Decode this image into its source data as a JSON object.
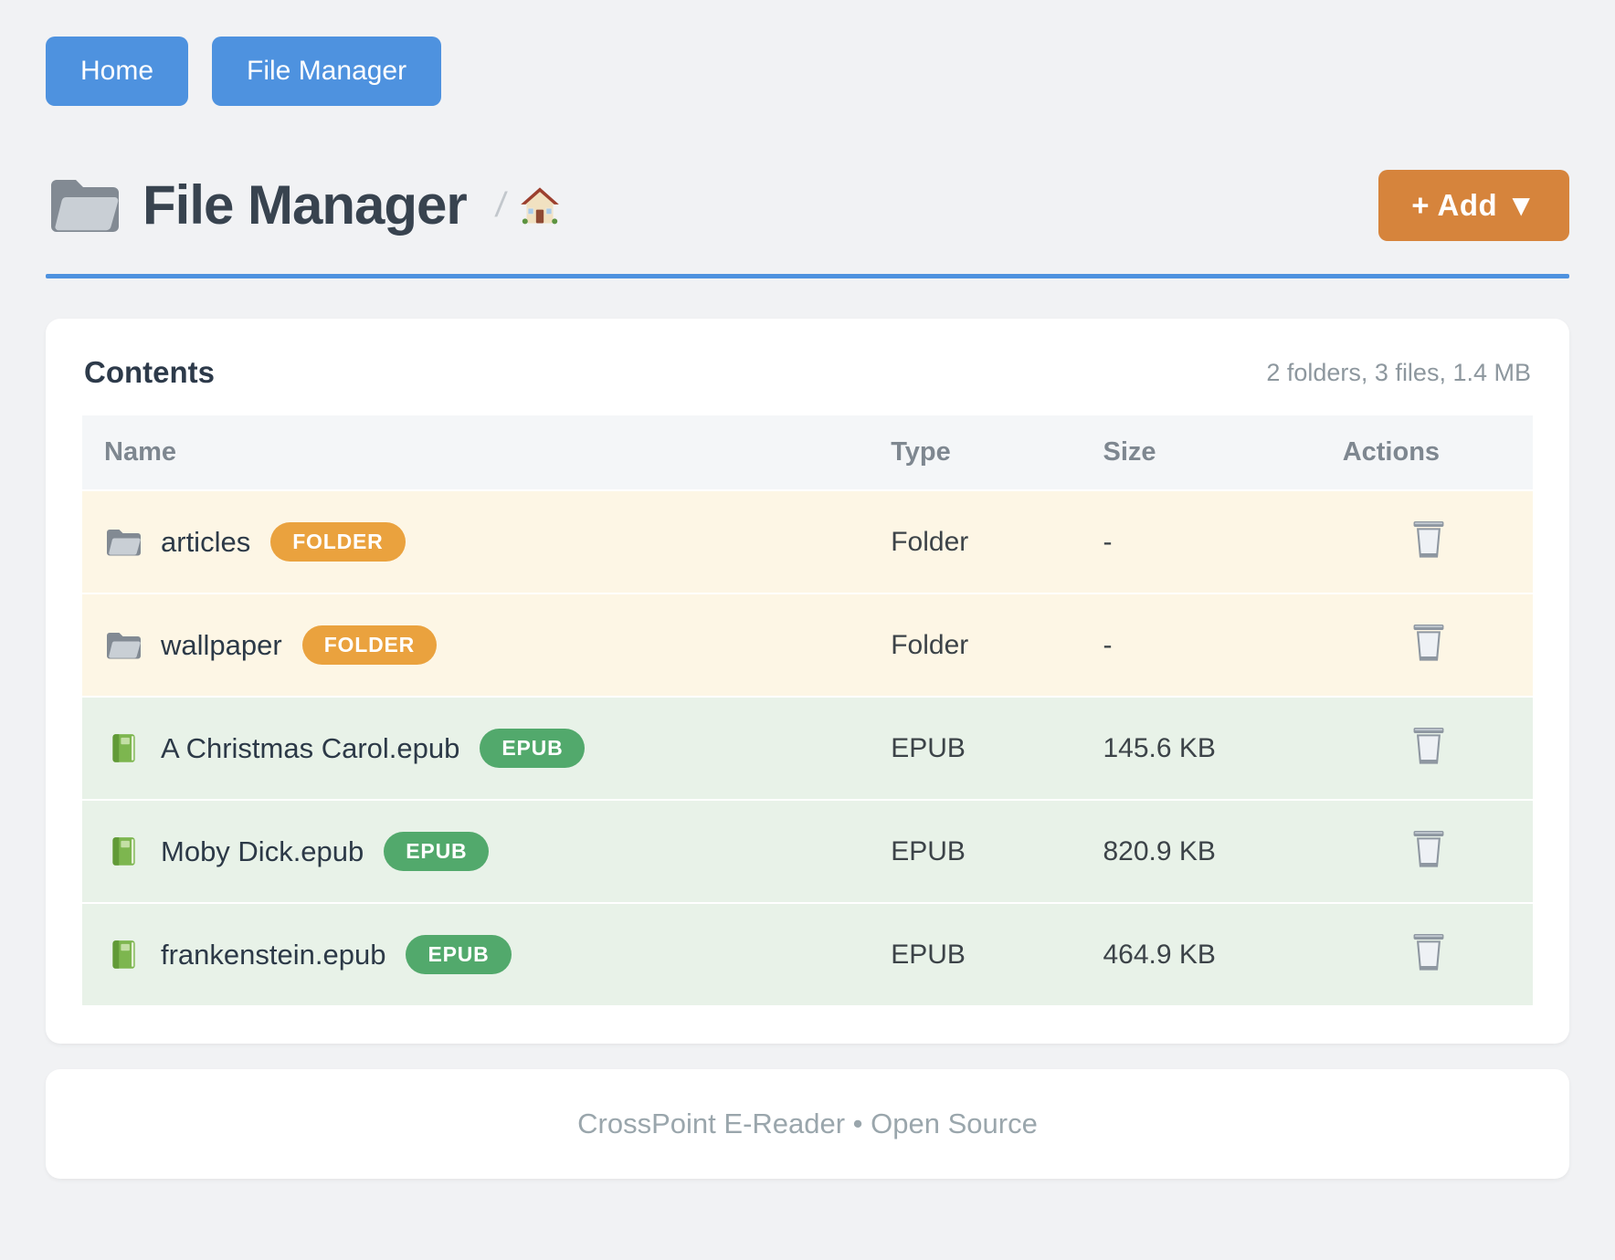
{
  "nav": {
    "home_label": "Home",
    "file_manager_label": "File Manager"
  },
  "header": {
    "title": "File Manager",
    "title_icon": "folder-icon",
    "breadcrumb_separator": "/",
    "breadcrumb_icon": "home-icon",
    "add_label": "+ Add ▼"
  },
  "contents": {
    "title": "Contents",
    "summary": "2 folders, 3 files, 1.4 MB",
    "columns": [
      "Name",
      "Type",
      "Size",
      "Actions"
    ],
    "rows": [
      {
        "name": "articles",
        "badge": "FOLDER",
        "type": "Folder",
        "size": "-",
        "kind": "folder",
        "icon": "folder-icon",
        "action_icon": "trash-icon"
      },
      {
        "name": "wallpaper",
        "badge": "FOLDER",
        "type": "Folder",
        "size": "-",
        "kind": "folder",
        "icon": "folder-icon",
        "action_icon": "trash-icon"
      },
      {
        "name": "A Christmas Carol.epub",
        "badge": "EPUB",
        "type": "EPUB",
        "size": "145.6 KB",
        "kind": "epub",
        "icon": "green-book-icon",
        "action_icon": "trash-icon"
      },
      {
        "name": "Moby Dick.epub",
        "badge": "EPUB",
        "type": "EPUB",
        "size": "820.9 KB",
        "kind": "epub",
        "icon": "green-book-icon",
        "action_icon": "trash-icon"
      },
      {
        "name": "frankenstein.epub",
        "badge": "EPUB",
        "type": "EPUB",
        "size": "464.9 KB",
        "kind": "epub",
        "icon": "green-book-icon",
        "action_icon": "trash-icon"
      }
    ]
  },
  "footer": {
    "text": "CrossPoint E-Reader • Open Source"
  },
  "colors": {
    "page_background": "#f1f2f4",
    "primary_blue": "#4e92df",
    "accent_orange": "#d6843c",
    "folder_badge": "#eaa23e",
    "epub_badge": "#52a96c",
    "folder_row_background": "#fdf6e5",
    "epub_row_background": "#e8f2e8",
    "heading_text": "#38434f",
    "muted_text": "#8d979e"
  }
}
